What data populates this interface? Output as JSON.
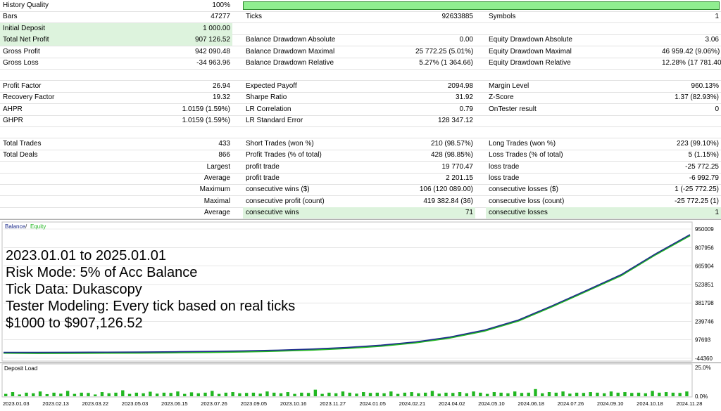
{
  "report": {
    "rows": [
      {
        "a_label": "History Quality",
        "a_value": "100%",
        "b_label": "",
        "b_value": "",
        "c_label": "",
        "c_value": "",
        "quality_bar": 1.0
      },
      {
        "a_label": "Bars",
        "a_value": "47277",
        "b_label": "Ticks",
        "b_value": "92633885",
        "c_label": "Symbols",
        "c_value": "1"
      },
      {
        "a_label": "Initial Deposit",
        "a_value": "1 000.00",
        "b_label": "",
        "b_value": "",
        "c_label": "",
        "c_value": "",
        "hl_a": true
      },
      {
        "a_label": "Total Net Profit",
        "a_value": "907 126.52",
        "b_label": "Balance Drawdown Absolute",
        "b_value": "0.00",
        "c_label": "Equity Drawdown Absolute",
        "c_value": "3.06",
        "hl_a": true
      },
      {
        "a_label": "Gross Profit",
        "a_value": "942 090.48",
        "b_label": "Balance Drawdown Maximal",
        "b_value": "25 772.25 (5.01%)",
        "c_label": "Equity Drawdown Maximal",
        "c_value": "46 959.42 (9.06%)"
      },
      {
        "a_label": "Gross Loss",
        "a_value": "-34 963.96",
        "b_label": "Balance Drawdown Relative",
        "b_value": "5.27% (1 364.66)",
        "c_label": "Equity Drawdown Relative",
        "c_value": "12.28% (17 781.40)"
      },
      {
        "a_label": "",
        "a_value": "",
        "b_label": "",
        "b_value": "",
        "c_label": "",
        "c_value": ""
      },
      {
        "a_label": "Profit Factor",
        "a_value": "26.94",
        "b_label": "Expected Payoff",
        "b_value": "2094.98",
        "c_label": "Margin Level",
        "c_value": "960.13%"
      },
      {
        "a_label": "Recovery Factor",
        "a_value": "19.32",
        "b_label": "Sharpe Ratio",
        "b_value": "31.92",
        "c_label": "Z-Score",
        "c_value": "1.37 (82.93%)"
      },
      {
        "a_label": "AHPR",
        "a_value": "1.0159 (1.59%)",
        "b_label": "LR Correlation",
        "b_value": "0.79",
        "c_label": "OnTester result",
        "c_value": "0"
      },
      {
        "a_label": "GHPR",
        "a_value": "1.0159 (1.59%)",
        "b_label": "LR Standard Error",
        "b_value": "128 347.12",
        "c_label": "",
        "c_value": ""
      },
      {
        "a_label": "",
        "a_value": "",
        "b_label": "",
        "b_value": "",
        "c_label": "",
        "c_value": ""
      },
      {
        "a_label": "Total Trades",
        "a_value": "433",
        "b_label": "Short Trades (won %)",
        "b_value": "210 (98.57%)",
        "c_label": "Long Trades (won %)",
        "c_value": "223 (99.10%)"
      },
      {
        "a_label": "Total Deals",
        "a_value": "866",
        "b_label": "Profit Trades (% of total)",
        "b_value": "428 (98.85%)",
        "c_label": "Loss Trades (% of total)",
        "c_value": "5 (1.15%)"
      },
      {
        "a_label": "",
        "a_value": "Largest",
        "b_label": "profit trade",
        "b_value": "19 770.47",
        "c_label": "loss trade",
        "c_value": "-25 772.25"
      },
      {
        "a_label": "",
        "a_value": "Average",
        "b_label": "profit trade",
        "b_value": "2 201.15",
        "c_label": "loss trade",
        "c_value": "-6 992.79"
      },
      {
        "a_label": "",
        "a_value": "Maximum",
        "b_label": "consecutive wins ($)",
        "b_value": "106 (120 089.00)",
        "c_label": "consecutive losses ($)",
        "c_value": "1 (-25 772.25)"
      },
      {
        "a_label": "",
        "a_value": "Maximal",
        "b_label": "consecutive profit (count)",
        "b_value": "419 382.84 (36)",
        "c_label": "consecutive loss (count)",
        "c_value": "-25 772.25 (1)"
      },
      {
        "a_label": "",
        "a_value": "Average",
        "b_label": "consecutive wins",
        "b_value": "71",
        "c_label": "consecutive losses",
        "c_value": "1",
        "hl_bc": true
      }
    ]
  },
  "balance_chart": {
    "legend_balance": "Balance",
    "legend_sep": " / ",
    "legend_equity": "Equity",
    "y_ticks": [
      "950009",
      "807956",
      "665904",
      "523851",
      "381798",
      "239746",
      "97693",
      "-44360"
    ],
    "y_tick_values": [
      950009,
      807956,
      665904,
      523851,
      381798,
      239746,
      97693,
      -44360
    ],
    "y_min": -44360,
    "y_max": 950009,
    "curve": [
      [
        0,
        1000
      ],
      [
        0.05,
        1400
      ],
      [
        0.1,
        2000
      ],
      [
        0.15,
        2900
      ],
      [
        0.2,
        4200
      ],
      [
        0.25,
        6100
      ],
      [
        0.3,
        8800
      ],
      [
        0.35,
        12800
      ],
      [
        0.4,
        18500
      ],
      [
        0.45,
        26900
      ],
      [
        0.5,
        39000
      ],
      [
        0.55,
        56500
      ],
      [
        0.6,
        82000
      ],
      [
        0.65,
        119000
      ],
      [
        0.7,
        172000
      ],
      [
        0.75,
        250000
      ],
      [
        0.8,
        362000
      ],
      [
        0.85,
        480000
      ],
      [
        0.9,
        600000
      ],
      [
        0.95,
        760000
      ],
      [
        1.0,
        907126
      ]
    ],
    "overlay_lines": [
      "2023.01.01 to 2025.01.01",
      "Risk Mode: 5% of Acc Balance",
      "Tick Data: Dukascopy",
      "Tester Modeling: Every tick based on real ticks",
      "$1000 to $907,126.52"
    ],
    "colors": {
      "balance": "#1e2d8c",
      "equity": "#22b722",
      "grid": "#d8d8d8"
    }
  },
  "deposit_chart": {
    "title": "Deposit Load",
    "y_ticks": [
      "25.0%",
      "0.0%"
    ],
    "bars": [
      0.2,
      0.35,
      0.15,
      0.3,
      0.25,
      0.4,
      0.18,
      0.3,
      0.22,
      0.45,
      0.2,
      0.3,
      0.28,
      0.15,
      0.35,
      0.25,
      0.3,
      0.5,
      0.2,
      0.3,
      0.25,
      0.38,
      0.22,
      0.3,
      0.28,
      0.4,
      0.2,
      0.33,
      0.25,
      0.3,
      0.45,
      0.2,
      0.3,
      0.35,
      0.25,
      0.28,
      0.3,
      0.22,
      0.4,
      0.3,
      0.25,
      0.35,
      0.2,
      0.3,
      0.28,
      0.55,
      0.2,
      0.3,
      0.25,
      0.4,
      0.3,
      0.22,
      0.35,
      0.28,
      0.3,
      0.25,
      0.4,
      0.2,
      0.3,
      0.35,
      0.25,
      0.3,
      0.45,
      0.22,
      0.3,
      0.28,
      0.35,
      0.25,
      0.4,
      0.3,
      0.2,
      0.35,
      0.3,
      0.25,
      0.4,
      0.28,
      0.3,
      0.6,
      0.25,
      0.35,
      0.3,
      0.4,
      0.22,
      0.3,
      0.28,
      0.35,
      0.3,
      0.25,
      0.4,
      0.3,
      0.35,
      0.28,
      0.3,
      0.25,
      0.45,
      0.3,
      0.35,
      0.3,
      0.28,
      0.4
    ],
    "x_labels": [
      "2023.01.03",
      "2023.02.13",
      "2023.03.22",
      "2023.05.03",
      "2023.06.15",
      "2023.07.26",
      "2023.09.05",
      "2023.10.16",
      "2023.11.27",
      "2024.01.05",
      "2024.02.21",
      "2024.04.02",
      "2024.05.10",
      "2024.06.18",
      "2024.07.26",
      "2024.09.10",
      "2024.10.18",
      "2024.11.28"
    ],
    "color": "#22b722"
  }
}
